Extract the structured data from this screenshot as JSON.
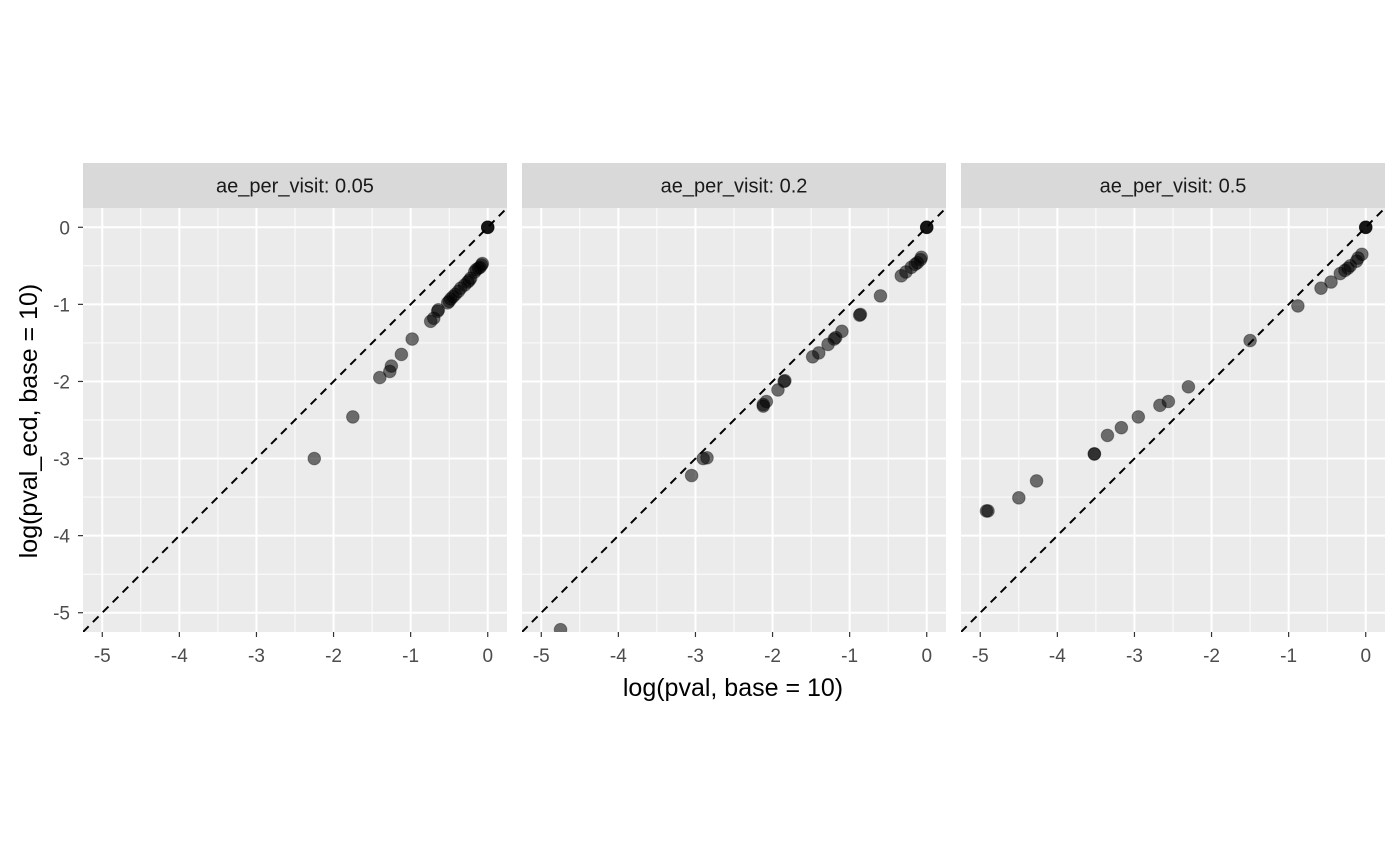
{
  "chart_data": {
    "type": "scatter",
    "xlabel": "log(pval, base = 10)",
    "ylabel": "log(pval_ecd, base = 10)",
    "xlim": [
      -5.25,
      0.25
    ],
    "ylim": [
      -5.25,
      0.25
    ],
    "x_ticks": [
      -5,
      -4,
      -3,
      -2,
      -1,
      0
    ],
    "y_ticks": [
      0,
      -1,
      -2,
      -3,
      -4,
      -5
    ],
    "reference_line": {
      "type": "identity",
      "style": "dashed"
    },
    "grid": true,
    "colors": {
      "panel_bg": "#EBEBEB",
      "strip_bg": "#D9D9D9",
      "grid": "#FFFFFF",
      "points": "#000000"
    },
    "point_alpha": 0.55,
    "panels": [
      {
        "label": "ae_per_visit: 0.05",
        "points": [
          [
            -2.25,
            -3.0
          ],
          [
            -1.75,
            -2.46
          ],
          [
            -1.4,
            -1.95
          ],
          [
            -1.27,
            -1.87
          ],
          [
            -1.25,
            -1.8
          ],
          [
            -1.12,
            -1.65
          ],
          [
            -0.98,
            -1.45
          ],
          [
            -0.74,
            -1.22
          ],
          [
            -0.7,
            -1.18
          ],
          [
            -0.65,
            -1.09
          ],
          [
            -0.64,
            -1.07
          ],
          [
            -0.52,
            -0.98
          ],
          [
            -0.5,
            -0.96
          ],
          [
            -0.48,
            -0.93
          ],
          [
            -0.45,
            -0.9
          ],
          [
            -0.42,
            -0.87
          ],
          [
            -0.38,
            -0.83
          ],
          [
            -0.35,
            -0.79
          ],
          [
            -0.3,
            -0.75
          ],
          [
            -0.26,
            -0.71
          ],
          [
            -0.24,
            -0.69
          ],
          [
            -0.22,
            -0.66
          ],
          [
            -0.17,
            -0.58
          ],
          [
            -0.15,
            -0.55
          ],
          [
            -0.12,
            -0.53
          ],
          [
            -0.1,
            -0.52
          ],
          [
            -0.08,
            -0.49
          ],
          [
            -0.07,
            -0.47
          ],
          [
            0.0,
            0.0
          ],
          [
            0.0,
            0.0
          ],
          [
            0.0,
            0.0
          ]
        ]
      },
      {
        "label": "ae_per_visit: 0.2",
        "points": [
          [
            -4.75,
            -5.22
          ],
          [
            -3.05,
            -3.22
          ],
          [
            -2.9,
            -3.0
          ],
          [
            -2.85,
            -2.99
          ],
          [
            -2.12,
            -2.32
          ],
          [
            -2.12,
            -2.3
          ],
          [
            -2.08,
            -2.26
          ],
          [
            -1.93,
            -2.11
          ],
          [
            -1.85,
            -2.0
          ],
          [
            -1.84,
            -1.99
          ],
          [
            -1.48,
            -1.68
          ],
          [
            -1.4,
            -1.63
          ],
          [
            -1.28,
            -1.52
          ],
          [
            -1.2,
            -1.45
          ],
          [
            -1.18,
            -1.43
          ],
          [
            -1.1,
            -1.35
          ],
          [
            -0.87,
            -1.14
          ],
          [
            -0.86,
            -1.13
          ],
          [
            -0.6,
            -0.89
          ],
          [
            -0.33,
            -0.63
          ],
          [
            -0.27,
            -0.58
          ],
          [
            -0.2,
            -0.52
          ],
          [
            -0.15,
            -0.48
          ],
          [
            -0.12,
            -0.46
          ],
          [
            -0.08,
            -0.42
          ],
          [
            -0.07,
            -0.39
          ],
          [
            0.0,
            0.0
          ],
          [
            0.0,
            0.0
          ],
          [
            0.0,
            0.0
          ]
        ]
      },
      {
        "label": "ae_per_visit: 0.5",
        "points": [
          [
            -4.92,
            -3.68
          ],
          [
            -4.9,
            -3.68
          ],
          [
            -4.5,
            -3.51
          ],
          [
            -4.27,
            -3.29
          ],
          [
            -3.52,
            -2.94
          ],
          [
            -3.52,
            -2.94
          ],
          [
            -3.35,
            -2.7
          ],
          [
            -3.17,
            -2.6
          ],
          [
            -2.95,
            -2.46
          ],
          [
            -2.67,
            -2.31
          ],
          [
            -2.56,
            -2.26
          ],
          [
            -2.3,
            -2.07
          ],
          [
            -1.5,
            -1.47
          ],
          [
            -0.88,
            -1.02
          ],
          [
            -0.58,
            -0.79
          ],
          [
            -0.45,
            -0.71
          ],
          [
            -0.33,
            -0.6
          ],
          [
            -0.27,
            -0.56
          ],
          [
            -0.23,
            -0.53
          ],
          [
            -0.2,
            -0.5
          ],
          [
            -0.12,
            -0.44
          ],
          [
            -0.1,
            -0.4
          ],
          [
            -0.05,
            -0.35
          ],
          [
            0.0,
            0.0
          ],
          [
            0.0,
            0.0
          ],
          [
            0.0,
            0.0
          ]
        ]
      }
    ]
  }
}
